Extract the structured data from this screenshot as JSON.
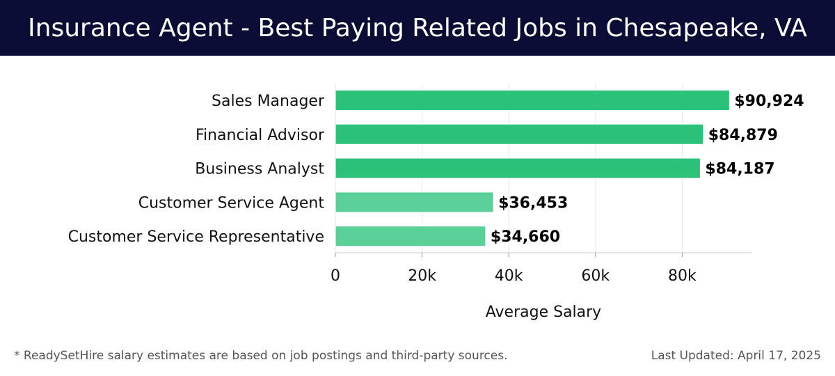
{
  "header": {
    "title": "Insurance Agent - Best Paying Related Jobs in Chesapeake, VA"
  },
  "footer": {
    "note": "* ReadySetHire salary estimates are based on job postings and third-party sources.",
    "updated": "Last Updated: April 17, 2025"
  },
  "colors": {
    "header_bg": "#0b0c34",
    "bar_primary": "#2dc27a",
    "bar_secondary": "#5bd098",
    "gridline": "#e5e5e5"
  },
  "chart_data": {
    "type": "bar",
    "orientation": "horizontal",
    "title": "Insurance Agent - Best Paying Related Jobs in Chesapeake, VA",
    "xlabel": "Average Salary",
    "ylabel": "",
    "categories": [
      "Sales Manager",
      "Financial Advisor",
      "Business Analyst",
      "Customer Service Agent",
      "Customer Service Representative"
    ],
    "values": [
      90924,
      84879,
      84187,
      36453,
      34660
    ],
    "value_labels": [
      "$90,924",
      "$84,879",
      "$84,187",
      "$36,453",
      "$34,660"
    ],
    "highlight": [
      true,
      true,
      true,
      false,
      false
    ],
    "xlim": [
      0,
      96000
    ],
    "xticks": [
      0,
      20000,
      40000,
      60000,
      80000
    ],
    "xtick_labels": [
      "0",
      "20k",
      "40k",
      "60k",
      "80k"
    ],
    "grid": true
  }
}
